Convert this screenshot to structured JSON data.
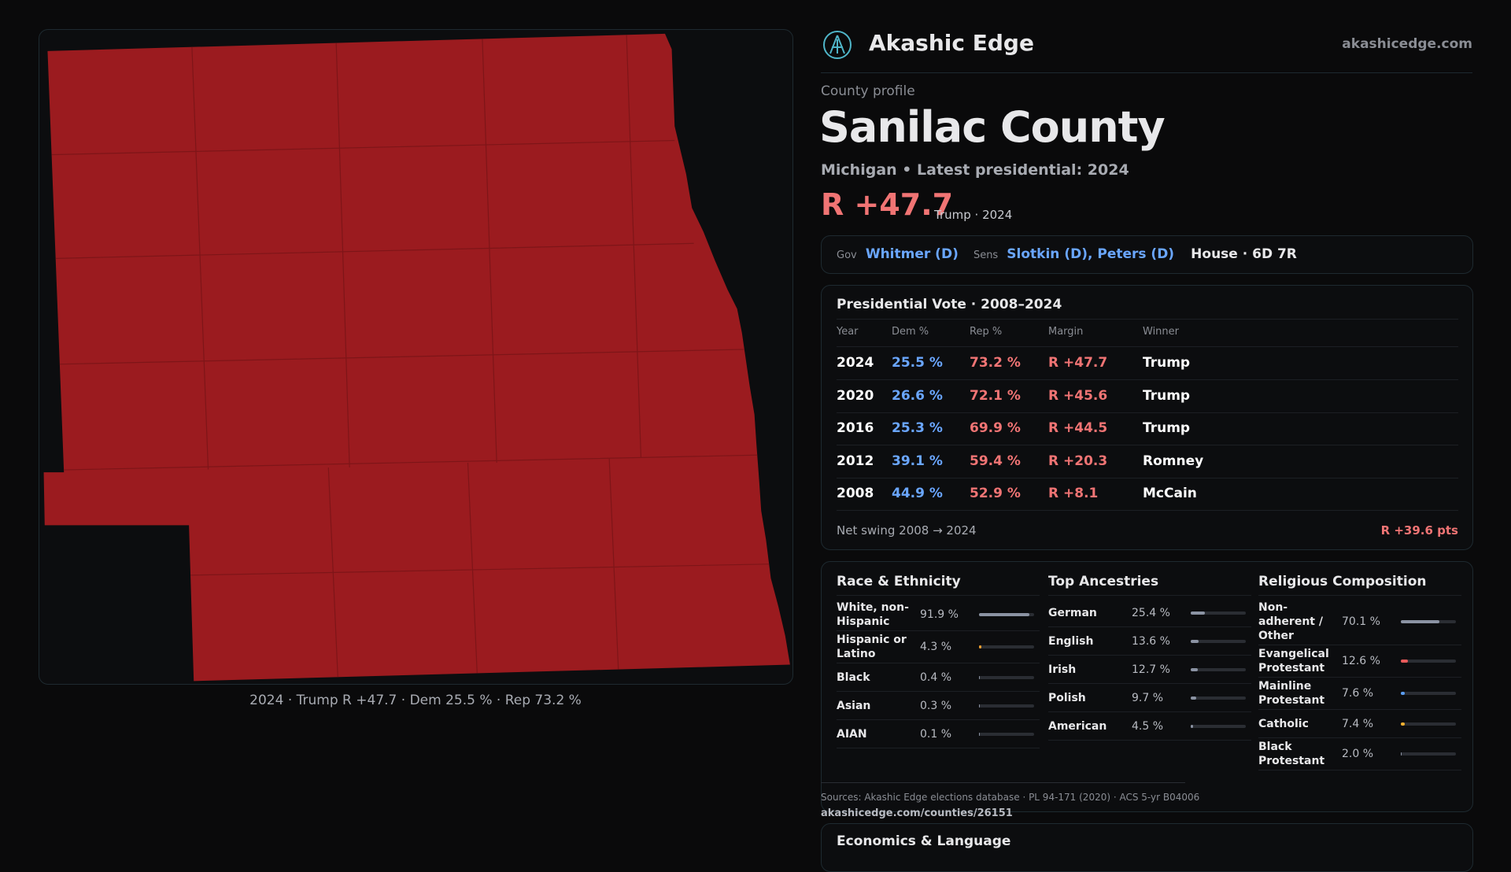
{
  "header": {
    "brand": "Akashic Edge",
    "url": "akashicedge.com"
  },
  "map": {
    "caption": "2024 · Trump R +47.7 · Dem 25.5 % · Rep 73.2 %"
  },
  "profile": {
    "eyebrow": "County profile",
    "title": "Sanilac County",
    "subtitle": "Michigan • Latest presidential: 2024",
    "margin": "R +47.7",
    "margin_note": "Trump · 2024"
  },
  "officials": {
    "gov_label": "Gov",
    "gov": "Whitmer (D)",
    "sens_label": "Sens",
    "sens": "Slotkin (D), Peters (D)",
    "house": "House · 6D 7R"
  },
  "presidential": {
    "title": "Presidential Vote · 2008–2024",
    "columns": [
      "Year",
      "Dem %",
      "Rep %",
      "Margin",
      "Winner"
    ],
    "rows": [
      [
        "2024",
        "25.5 %",
        "73.2 %",
        "R +47.7",
        "Trump"
      ],
      [
        "2020",
        "26.6 %",
        "72.1 %",
        "R +45.6",
        "Trump"
      ],
      [
        "2016",
        "25.3 %",
        "69.9 %",
        "R +44.5",
        "Trump"
      ],
      [
        "2012",
        "39.1 %",
        "59.4 %",
        "R +20.3",
        "Romney"
      ],
      [
        "2008",
        "44.9 %",
        "52.9 %",
        "R +8.1",
        "McCain"
      ]
    ],
    "swing_label": "Net swing 2008 → 2024",
    "swing": "R +39.6 pts"
  },
  "demographics": {
    "race": {
      "title": "Race & Ethnicity",
      "rows": [
        {
          "label": "White, non-Hispanic",
          "share": {
            "value": 91.9,
            "label": "91.9 %"
          },
          "color": "#8b93a3"
        },
        {
          "label": "Hispanic or Latino",
          "share": {
            "value": 4.3,
            "label": "4.3 %"
          },
          "color": "#f0a030"
        },
        {
          "label": "Black",
          "share": {
            "value": 0.4,
            "label": "0.4 %"
          },
          "color": "#8b93a3"
        },
        {
          "label": "Asian",
          "share": {
            "value": 0.3,
            "label": "0.3 %"
          },
          "color": "#8b93a3"
        },
        {
          "label": "AIAN",
          "share": {
            "value": 0.1,
            "label": "0.1 %"
          },
          "color": "#8b93a3"
        }
      ]
    },
    "ancestries": {
      "title": "Top Ancestries",
      "rows": [
        {
          "label": "German",
          "share": {
            "value": 25.4,
            "label": "25.4 %"
          },
          "color": "#8b93a3"
        },
        {
          "label": "English",
          "share": {
            "value": 13.6,
            "label": "13.6 %"
          },
          "color": "#8b93a3"
        },
        {
          "label": "Irish",
          "share": {
            "value": 12.7,
            "label": "12.7 %"
          },
          "color": "#8b93a3"
        },
        {
          "label": "Polish",
          "share": {
            "value": 9.7,
            "label": "9.7 %"
          },
          "color": "#8b93a3"
        },
        {
          "label": "American",
          "share": {
            "value": 4.5,
            "label": "4.5 %"
          },
          "color": "#8b93a3"
        }
      ]
    },
    "religion": {
      "title": "Religious Composition",
      "rows": [
        {
          "label": "Non-adherent / Other",
          "share": {
            "value": 70.1,
            "label": "70.1 %"
          },
          "color": "#8b93a3"
        },
        {
          "label": "Evangelical Protestant",
          "share": {
            "value": 12.6,
            "label": "12.6 %"
          },
          "color": "#e85a5a"
        },
        {
          "label": "Mainline Protestant",
          "share": {
            "value": 7.6,
            "label": "7.6 %"
          },
          "color": "#5a9cf0"
        },
        {
          "label": "Catholic",
          "share": {
            "value": 7.4,
            "label": "7.4 %"
          },
          "color": "#f0b030"
        },
        {
          "label": "Black Protestant",
          "share": {
            "value": 2.0,
            "label": "2.0 %"
          },
          "color": "#8b93a3"
        }
      ]
    }
  },
  "sources": {
    "text": "Sources: Akashic Edge elections database · PL 94-171 (2020) · ACS 5-yr B04006",
    "link": "akashicedge.com/counties/26151"
  },
  "economics": {
    "title": "Economics & Language"
  }
}
